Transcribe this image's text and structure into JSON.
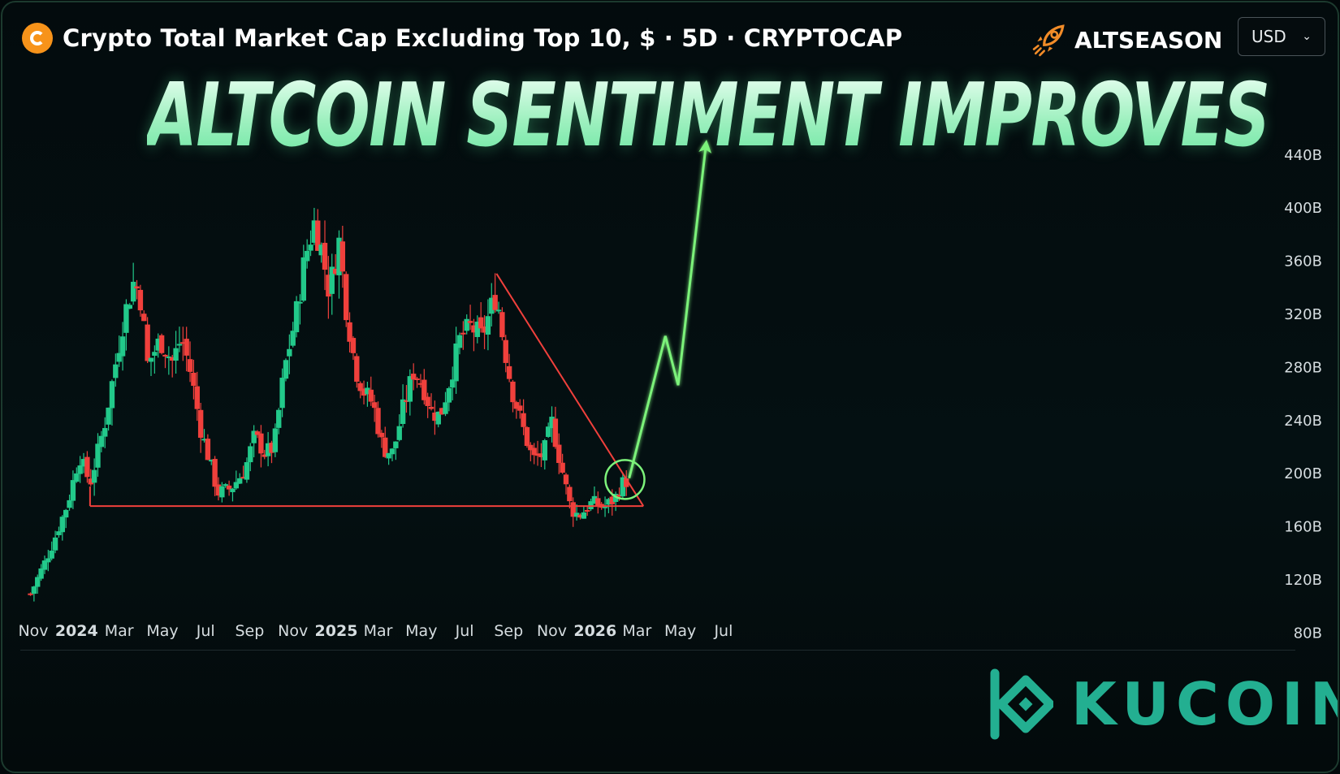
{
  "header": {
    "title": "Crypto Total Market Cap Excluding Top 10, $ · 5D · CRYPTOCAP",
    "icon": "coin-icon",
    "icon_color": "#f7931a"
  },
  "badge": {
    "label": "ALTSEASON",
    "icon": "rocket-icon",
    "icon_color": "#f28c28"
  },
  "currency": {
    "selected": "USD"
  },
  "headline": "ALTCOIN SENTIMENT IMPROVES",
  "brand": {
    "name": "KUCOIN",
    "color": "#23af91"
  },
  "colors": {
    "up": "#22c98a",
    "down": "#f0403c",
    "trendline": "#f0403c",
    "projection": "#7cf27a",
    "axis_text": "#d6dde0"
  },
  "chart_data": {
    "type": "candlestick",
    "y_unit": "B",
    "y_ticks": [
      "440B",
      "400B",
      "360B",
      "320B",
      "280B",
      "240B",
      "200B",
      "160B",
      "120B",
      "80B"
    ],
    "y_tick_values": [
      440,
      400,
      360,
      320,
      280,
      240,
      200,
      160,
      120,
      80
    ],
    "ylim": [
      80,
      460
    ],
    "x_ticks": [
      "Nov",
      "2024",
      "Mar",
      "May",
      "Jul",
      "Sep",
      "Nov",
      "2025",
      "Mar",
      "May",
      "Jul",
      "Sep",
      "Nov",
      "2026",
      "Mar",
      "May",
      "Jul"
    ],
    "x_tick_dates": [
      "2023-11-01",
      "2024-01-01",
      "2024-03-01",
      "2024-05-01",
      "2024-07-01",
      "2024-09-01",
      "2024-11-01",
      "2025-01-01",
      "2025-03-01",
      "2025-05-01",
      "2025-07-01",
      "2025-09-01",
      "2025-11-01",
      "2026-01-01",
      "2026-03-01",
      "2026-05-01",
      "2026-07-01"
    ],
    "close_path": [
      [
        "2023-10-28",
        109
      ],
      [
        "2023-11-25",
        142
      ],
      [
        "2023-12-20",
        178
      ],
      [
        "2024-01-05",
        213
      ],
      [
        "2024-01-20",
        192
      ],
      [
        "2024-02-10",
        238
      ],
      [
        "2024-03-08",
        318
      ],
      [
        "2024-03-22",
        345
      ],
      [
        "2024-04-01",
        330
      ],
      [
        "2024-04-10",
        282
      ],
      [
        "2024-04-28",
        300
      ],
      [
        "2024-05-15",
        284
      ],
      [
        "2024-05-28",
        302
      ],
      [
        "2024-06-10",
        275
      ],
      [
        "2024-06-24",
        233
      ],
      [
        "2024-07-08",
        206
      ],
      [
        "2024-07-18",
        185
      ],
      [
        "2024-08-05",
        188
      ],
      [
        "2024-08-25",
        202
      ],
      [
        "2024-09-08",
        228
      ],
      [
        "2024-09-22",
        215
      ],
      [
        "2024-10-05",
        219
      ],
      [
        "2024-10-20",
        278
      ],
      [
        "2024-11-05",
        318
      ],
      [
        "2024-11-18",
        362
      ],
      [
        "2024-12-01",
        388
      ],
      [
        "2024-12-10",
        372
      ],
      [
        "2024-12-22",
        337
      ],
      [
        "2025-01-05",
        374
      ],
      [
        "2025-01-15",
        325
      ],
      [
        "2025-01-28",
        279
      ],
      [
        "2025-02-08",
        262
      ],
      [
        "2025-02-22",
        252
      ],
      [
        "2025-03-08",
        218
      ],
      [
        "2025-03-22",
        215
      ],
      [
        "2025-04-05",
        248
      ],
      [
        "2025-04-20",
        276
      ],
      [
        "2025-05-02",
        268
      ],
      [
        "2025-05-15",
        246
      ],
      [
        "2025-05-28",
        243
      ],
      [
        "2025-06-10",
        270
      ],
      [
        "2025-06-25",
        302
      ],
      [
        "2025-07-10",
        310
      ],
      [
        "2025-07-25",
        302
      ],
      [
        "2025-08-08",
        325
      ],
      [
        "2025-08-15",
        335
      ],
      [
        "2025-08-22",
        308
      ],
      [
        "2025-09-05",
        264
      ],
      [
        "2025-09-20",
        236
      ],
      [
        "2025-10-05",
        210
      ],
      [
        "2025-10-20",
        214
      ],
      [
        "2025-11-01",
        238
      ],
      [
        "2025-11-12",
        210
      ],
      [
        "2025-11-28",
        172
      ],
      [
        "2025-12-10",
        168
      ],
      [
        "2025-12-28",
        178
      ],
      [
        "2026-01-12",
        174
      ],
      [
        "2026-01-28",
        180
      ],
      [
        "2026-02-08",
        192
      ],
      [
        "2026-02-15",
        194
      ]
    ],
    "projection": [
      [
        "2026-02-18",
        196
      ],
      [
        "2026-04-10",
        303
      ],
      [
        "2026-04-28",
        266
      ],
      [
        "2026-06-06",
        446
      ]
    ],
    "support_line": {
      "value": 175,
      "from": "2024-01-20",
      "to": "2026-03-10"
    },
    "descending_trendline": {
      "from": [
        "2025-08-15",
        350
      ],
      "to": [
        "2026-03-10",
        175
      ]
    },
    "highlight_circle": [
      "2026-02-12",
      195
    ],
    "legend": "none",
    "grid": false
  }
}
